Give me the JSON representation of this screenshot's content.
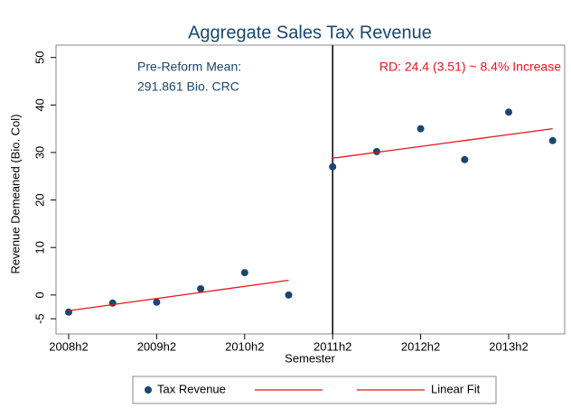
{
  "chart_data": {
    "type": "scatter",
    "title": "Aggregate Sales Tax Revenue",
    "x_label": "Semester",
    "y_label": "Revenue Demeaned (Bio. Col)",
    "categories": [
      "2008h2",
      null,
      "2009h2",
      null,
      "2010h2",
      null,
      "2011h2",
      null,
      "2012h2",
      null,
      "2013h2",
      null
    ],
    "series": [
      {
        "name": "Tax Revenue",
        "type": "scatter",
        "color": "#1a476f",
        "values": [
          -3.6,
          -1.7,
          -1.5,
          1.3,
          4.7,
          0,
          27,
          30.2,
          35,
          28.5,
          38.5,
          32.5
        ]
      },
      {
        "name": null,
        "type": "line",
        "color": "#e8141c",
        "values": [
          -3.3,
          -2.02,
          -0.74,
          0.54,
          1.82,
          3.1,
          null,
          null,
          null,
          null,
          null,
          null
        ]
      },
      {
        "name": "Linear Fit",
        "type": "line",
        "color": "#e8141c",
        "values": [
          null,
          null,
          null,
          null,
          null,
          null,
          28.8,
          30.04,
          31.28,
          32.52,
          33.76,
          35.0
        ]
      }
    ],
    "ylim": [
      -8.2,
      52.6
    ],
    "yticks": [
      -5,
      0,
      10,
      20,
      30,
      40,
      50
    ],
    "xline": "2011h2",
    "grid": false,
    "legend": "bottom",
    "annotations": [
      {
        "text": "Pre-Reform Mean:",
        "color": "#1a476f"
      },
      {
        "text": "291.861 Bio. CRC",
        "color": "#1a476f"
      },
      {
        "text": "RD: 24.4 (3.51) ~ 8.4% Increase",
        "color": "#e8141c"
      }
    ]
  }
}
